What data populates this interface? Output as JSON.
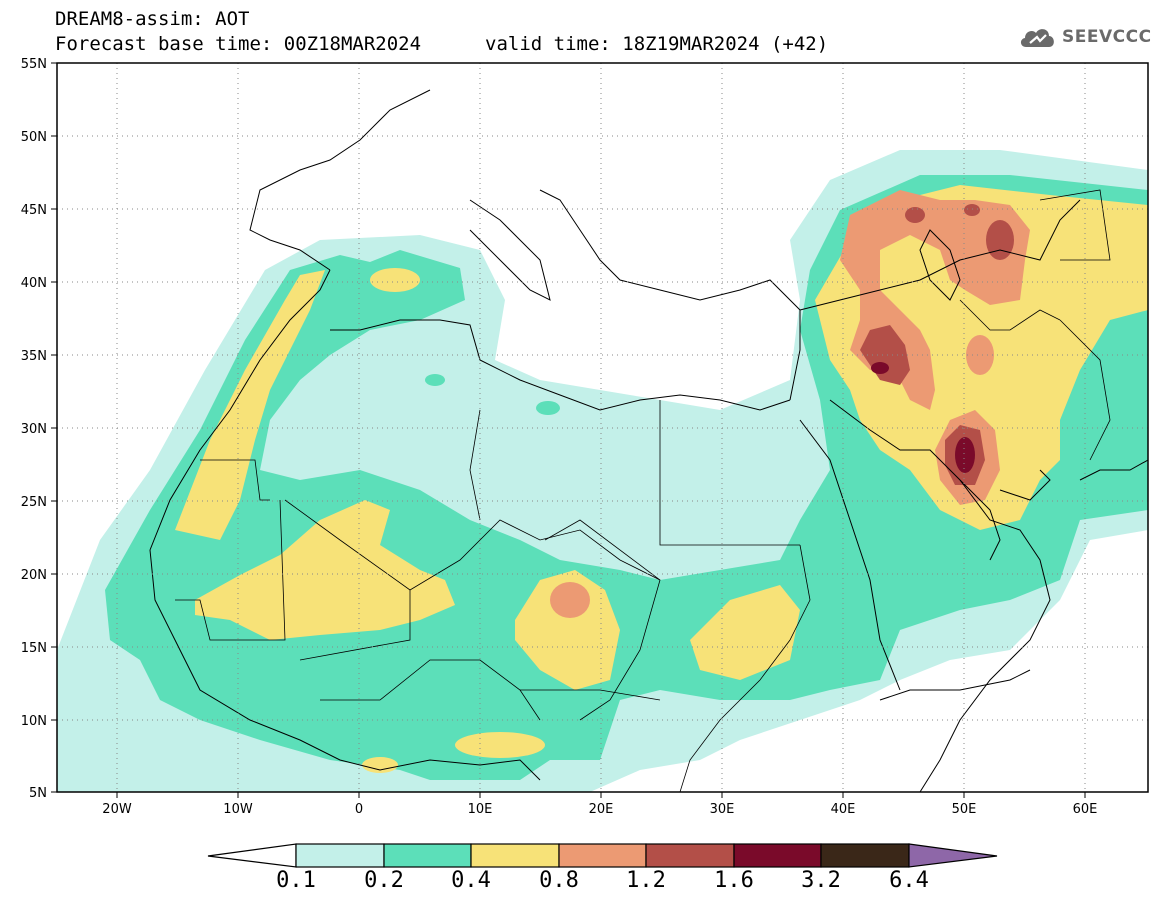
{
  "header": {
    "model_line": "DREAM8-assim: AOT",
    "base_time_line": "Forecast base time: 00Z18MAR2024",
    "valid_time_line": "valid time: 18Z19MAR2024 (+42)"
  },
  "logo": {
    "text": "SEEVCCC",
    "icon": "cloud-icon"
  },
  "map": {
    "type": "filled-contour-map",
    "variable": "AOT",
    "lon_range": [
      -25,
      65
    ],
    "lat_range": [
      5,
      55
    ],
    "lat_labels": [
      "55N",
      "50N",
      "45N",
      "40N",
      "35N",
      "30N",
      "25N",
      "20N",
      "15N",
      "10N",
      "5N"
    ],
    "lon_labels": [
      "20W",
      "10W",
      "0",
      "10E",
      "20E",
      "30E",
      "40E",
      "50E",
      "60E"
    ],
    "dotted_grid": true
  },
  "colorbar": {
    "levels": [
      "0.1",
      "0.2",
      "0.4",
      "0.8",
      "1.2",
      "1.6",
      "3.2",
      "6.4"
    ],
    "colors": [
      "#ffffff",
      "#c3f0e9",
      "#5cdfb9",
      "#f7e278",
      "#ec9a73",
      "#b34f48",
      "#7a0a2a",
      "#3a2718",
      "#8e67a8"
    ]
  }
}
